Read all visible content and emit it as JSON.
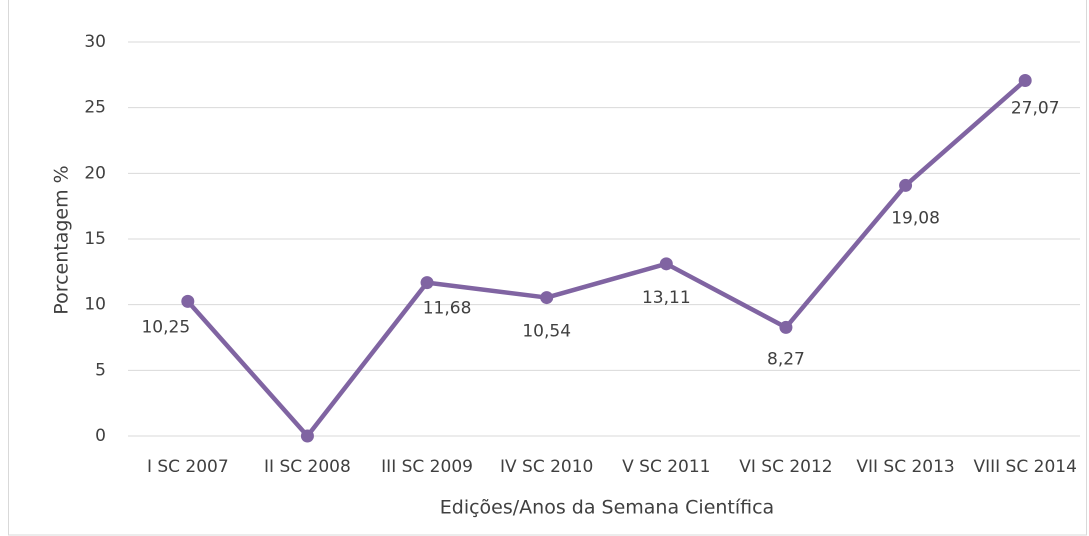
{
  "chart_data": {
    "type": "line",
    "y_label": "Porcentagem %",
    "x_label": "Edições/Anos da Semana Científica",
    "categories": [
      "I SC 2007",
      "II SC 2008",
      "III SC 2009",
      "IV SC 2010",
      "V SC 2011",
      "VI SC 2012",
      "VII SC 2013",
      "VIII SC 2014"
    ],
    "series": [
      {
        "name": "Porcentagem",
        "color": "#8064a2",
        "values": [
          10.25,
          0,
          11.68,
          10.54,
          13.11,
          8.27,
          19.08,
          27.07
        ],
        "value_labels": [
          "10,25",
          null,
          "11,68",
          "10,54",
          "13,11",
          "8,27",
          "19,08",
          "27,07"
        ]
      }
    ],
    "ylim": [
      0,
      30
    ],
    "yticks": [
      0,
      5,
      10,
      15,
      20,
      25,
      30
    ],
    "grid": true
  }
}
